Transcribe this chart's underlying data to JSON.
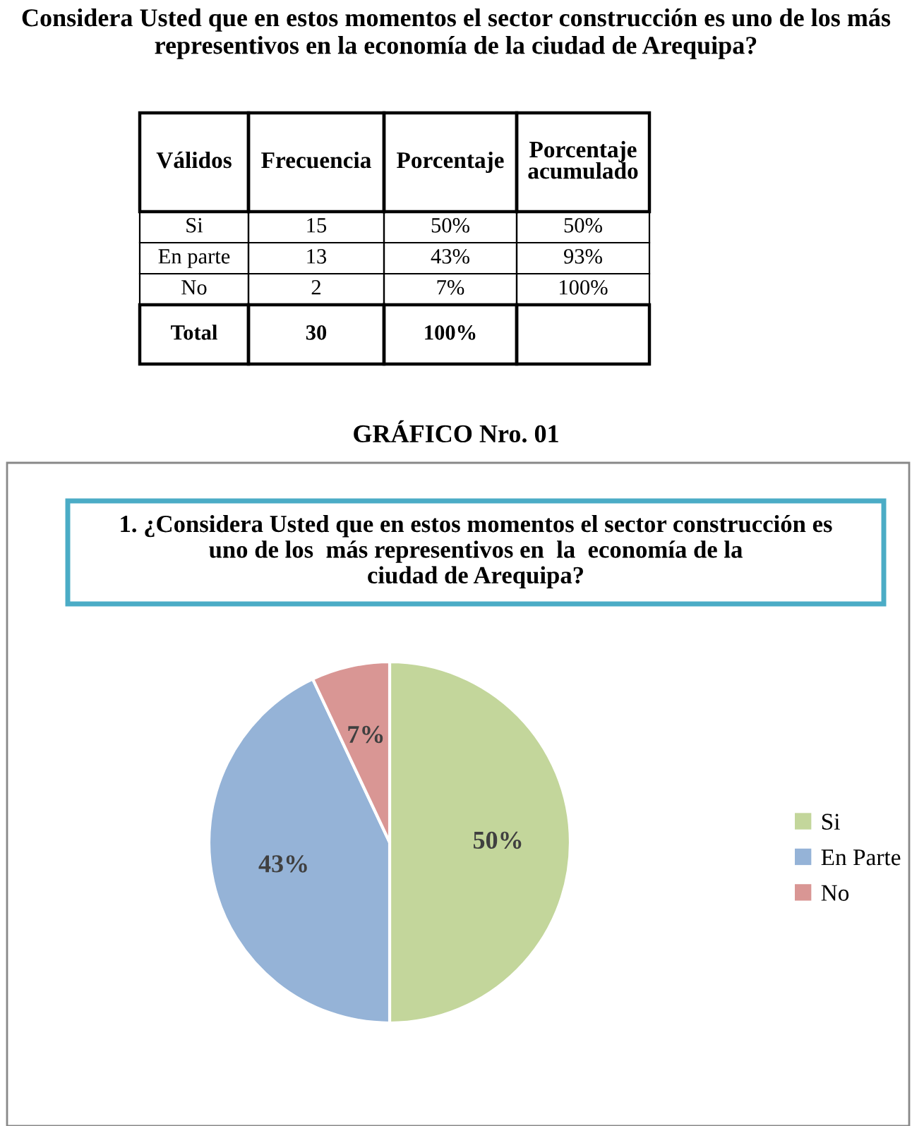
{
  "chart_data": [
    {
      "type": "other",
      "title": "Considera Usted que en estos momentos el sector construcción es uno de los más\nrepresentivos en la economía de la ciudad de Arequipa?",
      "categories": [
        "Válidos",
        "Frecuencia",
        "Porcentaje",
        "Porcentaje\nacumulado"
      ],
      "annotations": [
        "Si",
        "15",
        "50%",
        "50%",
        "En parte",
        "13",
        "43%",
        "93%",
        "No",
        "2",
        "7%",
        "100%",
        "Total",
        "30",
        "100%",
        null
      ]
    },
    {
      "type": "pie",
      "title": "1. ¿Considera Usted que en estos momentos el sector construcción es\nuno de los  más representivos en  la  economía de la\nciudad de Arequipa?",
      "annotations": [
        "GRÁFICO Nro. 01"
      ],
      "categories": [
        "Si",
        "En Parte",
        "No"
      ],
      "values": [
        50,
        43,
        7
      ],
      "colors": [
        "#c3d69b",
        "#95b3d7",
        "#d99694"
      ],
      "value_labels": [
        "50%",
        "43%",
        "7%"
      ],
      "legend": "right"
    }
  ]
}
